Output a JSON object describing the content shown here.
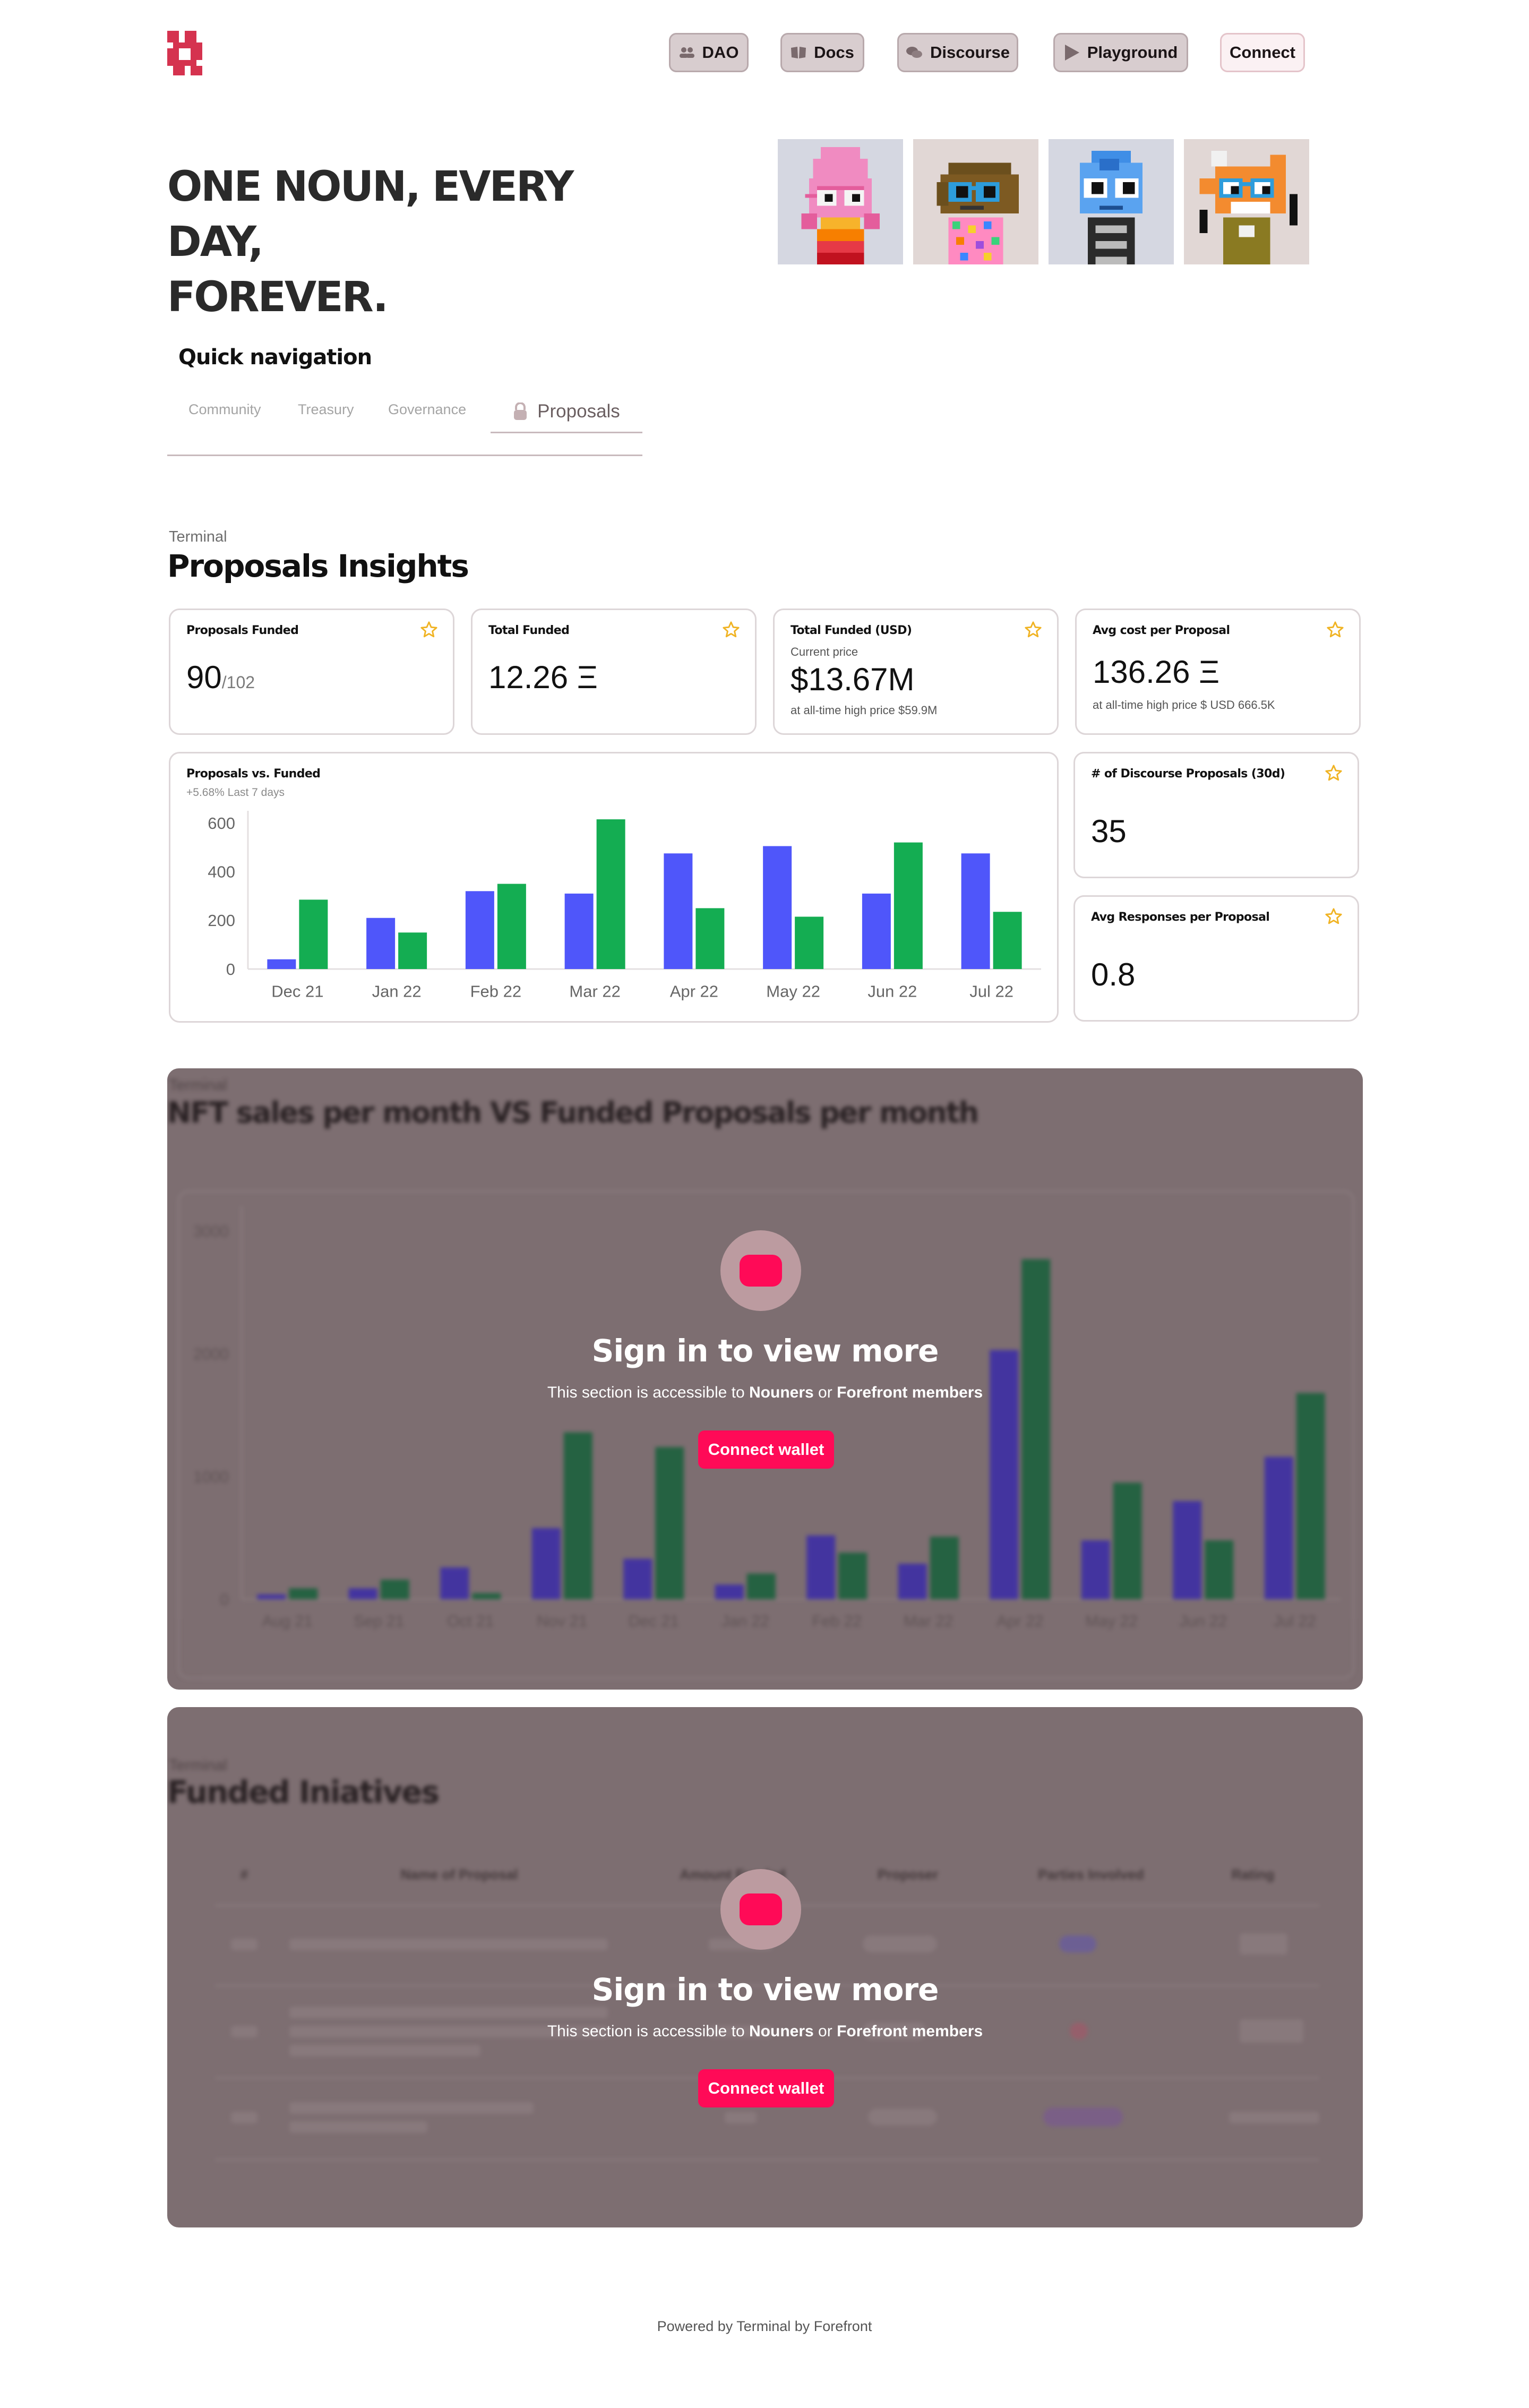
{
  "header": {
    "logo_icon": "nouns-logo-icon",
    "nav": [
      {
        "label": "DAO",
        "icon": "users-icon"
      },
      {
        "label": "Docs",
        "icon": "book-icon"
      },
      {
        "label": "Discourse",
        "icon": "chat-icon"
      },
      {
        "label": "Playground",
        "icon": "play-icon"
      }
    ],
    "connect_label": "Connect"
  },
  "hero": {
    "title_line1": "ONE NOUN, EVERY DAY,",
    "title_line2": "FOREVER."
  },
  "quick_nav": {
    "title": "Quick navigation",
    "tabs": [
      "Community",
      "Treasury",
      "Governance"
    ],
    "active_tab": "Proposals"
  },
  "insights": {
    "label": "Terminal",
    "title": "Proposals Insights",
    "cards": {
      "funded": {
        "title": "Proposals Funded",
        "value": "90",
        "total": "/102"
      },
      "total_funded": {
        "title": "Total Funded",
        "value": "12.26 Ξ"
      },
      "total_usd": {
        "title": "Total Funded (USD)",
        "caption": "Current price",
        "value": "$13.67M",
        "sub": "at all-time high price $59.9M"
      },
      "avg_cost": {
        "title": "Avg cost per Proposal",
        "value": "136.26 Ξ",
        "sub": "at all-time high price $ USD 666.5K"
      },
      "discourse": {
        "title": "# of Discourse Proposals (30d)",
        "value": "35"
      },
      "responses": {
        "title": "Avg Responses per Proposal",
        "value": "0.8"
      }
    },
    "chart_title": "Proposals vs. Funded",
    "chart_subtitle": "+5.68% Last 7 days"
  },
  "chart_data": [
    {
      "type": "bar",
      "title": "Proposals vs. Funded",
      "subtitle": "+5.68% Last 7 days",
      "categories": [
        "Dec 21",
        "Jan 22",
        "Feb 22",
        "Mar 22",
        "Apr 22",
        "May 22",
        "Jun 22",
        "Jul 22"
      ],
      "series": [
        {
          "values": [
            40,
            210,
            320,
            310,
            475,
            505,
            310,
            475
          ]
        },
        {
          "values": [
            285,
            150,
            350,
            615,
            250,
            215,
            520,
            235
          ]
        }
      ],
      "ylim": [
        0,
        650
      ],
      "yticks": [
        0,
        200,
        400,
        600
      ],
      "colors": [
        "#4f56fa",
        "#14ad52"
      ],
      "grid": false
    },
    {
      "type": "bar",
      "title": "NFT sales per month VS Funded Proposals per month",
      "categories": [
        "Aug 21",
        "Sep 21",
        "Oct 21",
        "Nov 21",
        "Dec 21",
        "Jan 22",
        "Feb 22",
        "Mar 22",
        "Apr 22",
        "May 22",
        "Jun 22",
        "Jul 22"
      ],
      "series": [
        {
          "values": [
            40,
            90,
            260,
            580,
            330,
            120,
            520,
            290,
            2030,
            480,
            800,
            1160
          ]
        },
        {
          "values": [
            90,
            160,
            50,
            1360,
            1240,
            210,
            380,
            510,
            2770,
            950,
            480,
            1680
          ]
        }
      ],
      "ylim": [
        0,
        3200
      ],
      "yticks": [
        0,
        1000,
        2000,
        3000
      ],
      "colors": [
        "#3a2ba8",
        "#16603a"
      ],
      "grid": false
    }
  ],
  "locked_chart": {
    "label": "Terminal",
    "title": "NFT sales per month VS Funded Proposals per month"
  },
  "locked_table": {
    "label": "Terminal",
    "title": "Funded Iniatives",
    "columns": [
      "#",
      "Name of Proposal",
      "Amount Funded",
      "Proposer",
      "Parties Involved",
      "Rating"
    ]
  },
  "lock": {
    "icon": "lock-icon",
    "title": "Sign in to view more",
    "text_prefix": "This section is accessible to",
    "nouners": "Nouners",
    "or": "or",
    "forefront": "Forefront members",
    "button": "Connect wallet"
  },
  "footer": "Powered by Terminal by Forefront"
}
